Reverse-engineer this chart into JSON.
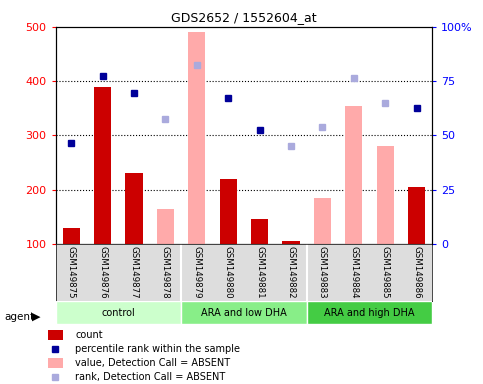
{
  "title": "GDS2652 / 1552604_at",
  "samples": [
    "GSM149875",
    "GSM149876",
    "GSM149877",
    "GSM149878",
    "GSM149879",
    "GSM149880",
    "GSM149881",
    "GSM149882",
    "GSM149883",
    "GSM149884",
    "GSM149885",
    "GSM149886"
  ],
  "groups": [
    {
      "label": "control",
      "start": 0,
      "end": 4,
      "color": "#ccffcc"
    },
    {
      "label": "ARA and low DHA",
      "start": 4,
      "end": 8,
      "color": "#88ee88"
    },
    {
      "label": "ARA and high DHA",
      "start": 8,
      "end": 12,
      "color": "#44cc44"
    }
  ],
  "count_values": [
    130,
    390,
    230,
    null,
    null,
    220,
    145,
    105,
    null,
    null,
    null,
    205
  ],
  "count_absent": [
    null,
    null,
    null,
    165,
    490,
    null,
    null,
    null,
    185,
    355,
    280,
    null
  ],
  "percentile_rank": [
    285,
    410,
    378,
    null,
    null,
    368,
    310,
    null,
    null,
    null,
    null,
    350
  ],
  "percentile_rank_absent": [
    null,
    null,
    null,
    330,
    430,
    null,
    null,
    280,
    315,
    405,
    360,
    null
  ],
  "left_ylim": [
    100,
    500
  ],
  "right_ylim": [
    0,
    100
  ],
  "left_yticks": [
    100,
    200,
    300,
    400,
    500
  ],
  "right_yticks": [
    0,
    25,
    50,
    75,
    100
  ],
  "left_tick_labels": [
    "100",
    "200",
    "300",
    "400",
    "500"
  ],
  "right_tick_labels": [
    "0",
    "25",
    "50",
    "75",
    "100%"
  ],
  "bar_color_present": "#cc0000",
  "bar_color_absent": "#ffaaaa",
  "dot_color_present": "#000099",
  "dot_color_absent": "#aaaadd",
  "bg_plot": "#ffffff",
  "bg_label": "#dddddd",
  "legend_items": [
    {
      "color": "#cc0000",
      "type": "bar",
      "label": "count"
    },
    {
      "color": "#000099",
      "type": "dot",
      "label": "percentile rank within the sample"
    },
    {
      "color": "#ffaaaa",
      "type": "bar",
      "label": "value, Detection Call = ABSENT"
    },
    {
      "color": "#aaaadd",
      "type": "dot",
      "label": "rank, Detection Call = ABSENT"
    }
  ]
}
